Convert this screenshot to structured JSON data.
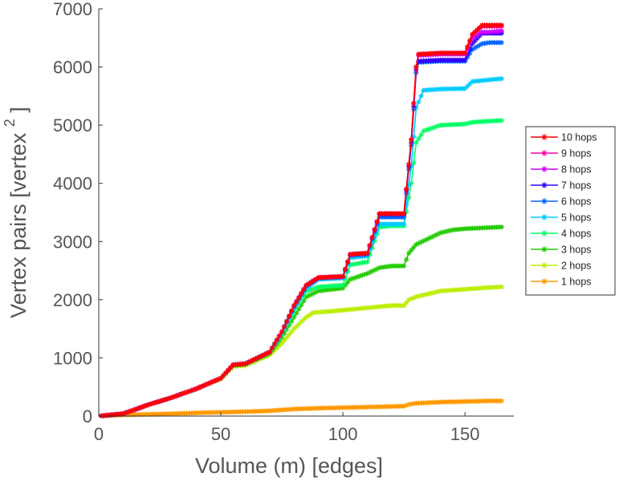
{
  "chart_data": {
    "type": "line",
    "xlabel": "Volume (m) [edges]",
    "ylabel": "Vertex pairs [vertex",
    "ylabel_sup": "2",
    "ylabel_close": "]",
    "xlim": [
      0,
      170
    ],
    "ylim": [
      0,
      7000
    ],
    "xticks": [
      "0",
      "50",
      "100",
      "150"
    ],
    "yticks": [
      "0",
      "1000",
      "2000",
      "3000",
      "4000",
      "5000",
      "6000",
      "7000"
    ],
    "grid": false,
    "legend_position": "right",
    "series": [
      {
        "name": "10 hops",
        "color": "#ff0000",
        "points": [
          [
            0,
            0
          ],
          [
            10,
            40
          ],
          [
            20,
            190
          ],
          [
            30,
            320
          ],
          [
            40,
            470
          ],
          [
            50,
            650
          ],
          [
            55,
            880
          ],
          [
            60,
            900
          ],
          [
            70,
            1100
          ],
          [
            75,
            1450
          ],
          [
            80,
            1900
          ],
          [
            85,
            2250
          ],
          [
            90,
            2380
          ],
          [
            100,
            2400
          ],
          [
            103,
            2780
          ],
          [
            110,
            2800
          ],
          [
            115,
            3480
          ],
          [
            120,
            3480
          ],
          [
            125,
            3480
          ],
          [
            128,
            4750
          ],
          [
            130,
            6000
          ],
          [
            131,
            6220
          ],
          [
            140,
            6240
          ],
          [
            150,
            6240
          ],
          [
            153,
            6560
          ],
          [
            157,
            6720
          ],
          [
            160,
            6720
          ],
          [
            165,
            6720
          ]
        ]
      },
      {
        "name": "9 hops",
        "color": "#ff00aa",
        "points": [
          [
            0,
            0
          ],
          [
            10,
            40
          ],
          [
            20,
            190
          ],
          [
            30,
            320
          ],
          [
            40,
            470
          ],
          [
            50,
            650
          ],
          [
            55,
            880
          ],
          [
            60,
            900
          ],
          [
            70,
            1100
          ],
          [
            75,
            1450
          ],
          [
            80,
            1900
          ],
          [
            85,
            2250
          ],
          [
            90,
            2380
          ],
          [
            100,
            2400
          ],
          [
            103,
            2780
          ],
          [
            110,
            2800
          ],
          [
            115,
            3480
          ],
          [
            120,
            3480
          ],
          [
            125,
            3480
          ],
          [
            128,
            4750
          ],
          [
            130,
            6000
          ],
          [
            131,
            6220
          ],
          [
            140,
            6240
          ],
          [
            150,
            6240
          ],
          [
            153,
            6560
          ],
          [
            157,
            6700
          ],
          [
            160,
            6700
          ],
          [
            165,
            6700
          ]
        ]
      },
      {
        "name": "8 hops",
        "color": "#cc00ff",
        "points": [
          [
            0,
            0
          ],
          [
            10,
            40
          ],
          [
            20,
            190
          ],
          [
            30,
            320
          ],
          [
            40,
            470
          ],
          [
            50,
            650
          ],
          [
            55,
            880
          ],
          [
            60,
            900
          ],
          [
            70,
            1100
          ],
          [
            75,
            1450
          ],
          [
            80,
            1900
          ],
          [
            85,
            2250
          ],
          [
            90,
            2380
          ],
          [
            100,
            2400
          ],
          [
            103,
            2780
          ],
          [
            110,
            2800
          ],
          [
            115,
            3480
          ],
          [
            120,
            3480
          ],
          [
            125,
            3480
          ],
          [
            128,
            4750
          ],
          [
            130,
            6000
          ],
          [
            131,
            6200
          ],
          [
            140,
            6220
          ],
          [
            150,
            6220
          ],
          [
            153,
            6500
          ],
          [
            157,
            6600
          ],
          [
            160,
            6600
          ],
          [
            165,
            6620
          ]
        ]
      },
      {
        "name": "7 hops",
        "color": "#3300ff",
        "points": [
          [
            0,
            0
          ],
          [
            10,
            40
          ],
          [
            20,
            190
          ],
          [
            30,
            320
          ],
          [
            40,
            470
          ],
          [
            50,
            650
          ],
          [
            55,
            880
          ],
          [
            60,
            900
          ],
          [
            70,
            1100
          ],
          [
            75,
            1450
          ],
          [
            80,
            1900
          ],
          [
            85,
            2250
          ],
          [
            90,
            2380
          ],
          [
            100,
            2400
          ],
          [
            103,
            2780
          ],
          [
            110,
            2800
          ],
          [
            115,
            3470
          ],
          [
            120,
            3470
          ],
          [
            125,
            3470
          ],
          [
            128,
            4700
          ],
          [
            130,
            5950
          ],
          [
            131,
            6100
          ],
          [
            140,
            6120
          ],
          [
            150,
            6120
          ],
          [
            153,
            6400
          ],
          [
            157,
            6580
          ],
          [
            160,
            6580
          ],
          [
            165,
            6580
          ]
        ]
      },
      {
        "name": "6 hops",
        "color": "#0066ff",
        "points": [
          [
            0,
            0
          ],
          [
            10,
            40
          ],
          [
            20,
            190
          ],
          [
            30,
            320
          ],
          [
            40,
            470
          ],
          [
            50,
            650
          ],
          [
            55,
            880
          ],
          [
            60,
            900
          ],
          [
            70,
            1100
          ],
          [
            75,
            1450
          ],
          [
            80,
            1880
          ],
          [
            85,
            2230
          ],
          [
            90,
            2370
          ],
          [
            100,
            2390
          ],
          [
            103,
            2760
          ],
          [
            110,
            2780
          ],
          [
            115,
            3420
          ],
          [
            120,
            3420
          ],
          [
            125,
            3420
          ],
          [
            128,
            4650
          ],
          [
            130,
            5900
          ],
          [
            131,
            6080
          ],
          [
            140,
            6100
          ],
          [
            150,
            6100
          ],
          [
            153,
            6300
          ],
          [
            157,
            6400
          ],
          [
            160,
            6420
          ],
          [
            165,
            6420
          ]
        ]
      },
      {
        "name": "5 hops",
        "color": "#00ccff",
        "points": [
          [
            0,
            0
          ],
          [
            10,
            40
          ],
          [
            20,
            190
          ],
          [
            30,
            320
          ],
          [
            40,
            470
          ],
          [
            50,
            650
          ],
          [
            55,
            880
          ],
          [
            60,
            900
          ],
          [
            70,
            1100
          ],
          [
            75,
            1420
          ],
          [
            80,
            1850
          ],
          [
            85,
            2200
          ],
          [
            90,
            2350
          ],
          [
            100,
            2370
          ],
          [
            103,
            2720
          ],
          [
            110,
            2750
          ],
          [
            115,
            3300
          ],
          [
            120,
            3300
          ],
          [
            125,
            3300
          ],
          [
            128,
            4300
          ],
          [
            130,
            5300
          ],
          [
            133,
            5600
          ],
          [
            140,
            5620
          ],
          [
            150,
            5630
          ],
          [
            153,
            5750
          ],
          [
            160,
            5780
          ],
          [
            165,
            5800
          ]
        ]
      },
      {
        "name": "4 hops",
        "color": "#00ff66",
        "points": [
          [
            0,
            0
          ],
          [
            10,
            40
          ],
          [
            20,
            190
          ],
          [
            30,
            320
          ],
          [
            40,
            470
          ],
          [
            50,
            650
          ],
          [
            55,
            880
          ],
          [
            60,
            900
          ],
          [
            70,
            1100
          ],
          [
            75,
            1400
          ],
          [
            80,
            1800
          ],
          [
            85,
            2150
          ],
          [
            90,
            2220
          ],
          [
            100,
            2250
          ],
          [
            103,
            2600
          ],
          [
            110,
            2650
          ],
          [
            115,
            3250
          ],
          [
            120,
            3270
          ],
          [
            125,
            3270
          ],
          [
            128,
            4000
          ],
          [
            130,
            4700
          ],
          [
            133,
            4900
          ],
          [
            140,
            5000
          ],
          [
            150,
            5020
          ],
          [
            153,
            5050
          ],
          [
            160,
            5070
          ],
          [
            165,
            5080
          ]
        ]
      },
      {
        "name": "3 hops",
        "color": "#22cc00",
        "points": [
          [
            0,
            0
          ],
          [
            10,
            40
          ],
          [
            20,
            190
          ],
          [
            30,
            320
          ],
          [
            40,
            470
          ],
          [
            50,
            650
          ],
          [
            55,
            870
          ],
          [
            60,
            890
          ],
          [
            70,
            1080
          ],
          [
            75,
            1350
          ],
          [
            80,
            1700
          ],
          [
            85,
            2050
          ],
          [
            90,
            2150
          ],
          [
            100,
            2200
          ],
          [
            103,
            2350
          ],
          [
            110,
            2450
          ],
          [
            115,
            2550
          ],
          [
            120,
            2580
          ],
          [
            125,
            2580
          ],
          [
            127,
            2800
          ],
          [
            130,
            2950
          ],
          [
            135,
            3050
          ],
          [
            140,
            3150
          ],
          [
            145,
            3200
          ],
          [
            150,
            3220
          ],
          [
            160,
            3240
          ],
          [
            165,
            3250
          ]
        ]
      },
      {
        "name": "2 hops",
        "color": "#bbee00",
        "points": [
          [
            0,
            0
          ],
          [
            10,
            40
          ],
          [
            20,
            190
          ],
          [
            30,
            320
          ],
          [
            40,
            470
          ],
          [
            50,
            640
          ],
          [
            55,
            850
          ],
          [
            60,
            870
          ],
          [
            70,
            1050
          ],
          [
            75,
            1250
          ],
          [
            80,
            1500
          ],
          [
            85,
            1700
          ],
          [
            88,
            1780
          ],
          [
            95,
            1800
          ],
          [
            100,
            1820
          ],
          [
            105,
            1840
          ],
          [
            110,
            1860
          ],
          [
            115,
            1880
          ],
          [
            120,
            1900
          ],
          [
            125,
            1900
          ],
          [
            127,
            2000
          ],
          [
            130,
            2050
          ],
          [
            135,
            2100
          ],
          [
            140,
            2150
          ],
          [
            150,
            2180
          ],
          [
            160,
            2210
          ],
          [
            165,
            2220
          ]
        ]
      },
      {
        "name": "1 hops",
        "color": "#ff9900",
        "points": [
          [
            0,
            0
          ],
          [
            5,
            10
          ],
          [
            10,
            20
          ],
          [
            20,
            30
          ],
          [
            30,
            40
          ],
          [
            40,
            55
          ],
          [
            50,
            65
          ],
          [
            60,
            75
          ],
          [
            70,
            90
          ],
          [
            80,
            120
          ],
          [
            90,
            135
          ],
          [
            100,
            145
          ],
          [
            110,
            155
          ],
          [
            120,
            165
          ],
          [
            125,
            170
          ],
          [
            127,
            200
          ],
          [
            130,
            220
          ],
          [
            140,
            240
          ],
          [
            150,
            250
          ],
          [
            160,
            260
          ],
          [
            165,
            260
          ]
        ]
      }
    ]
  }
}
